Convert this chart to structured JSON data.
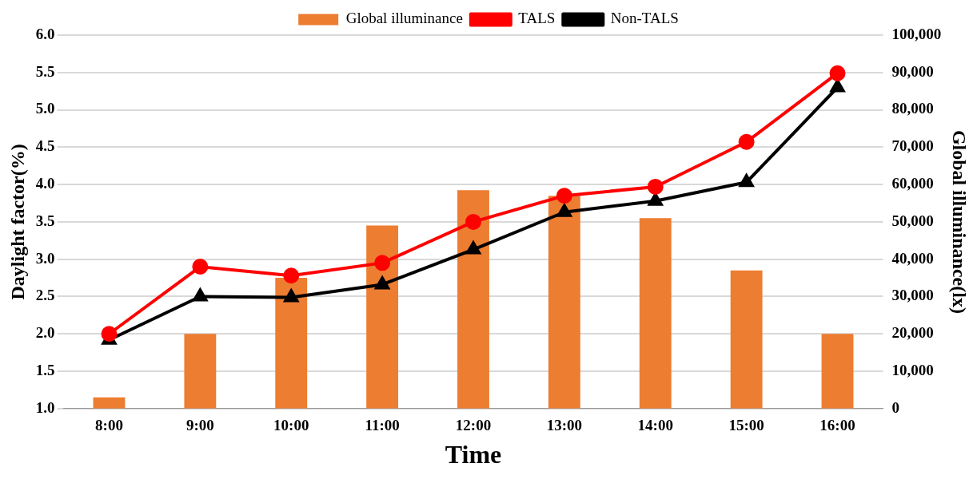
{
  "chart_data": {
    "type": "bar",
    "xlabel": "Time",
    "ylabel": "Daylight factor(%)",
    "y2label": "Global illuminance(lx)",
    "categories": [
      "8:00",
      "9:00",
      "10:00",
      "11:00",
      "12:00",
      "13:00",
      "14:00",
      "15:00",
      "16:00"
    ],
    "series": [
      {
        "name": "Global illuminance",
        "axis": "y2",
        "color": "#ed7d31",
        "values": [
          3000,
          20000,
          35000,
          49000,
          58500,
          57000,
          51000,
          37000,
          20000
        ]
      },
      {
        "name": "TALS",
        "type": "line",
        "color": "#ff0000",
        "marker": "circle",
        "values": [
          2.0,
          2.9,
          2.78,
          2.95,
          3.5,
          3.85,
          3.97,
          4.57,
          5.49
        ]
      },
      {
        "name": "Non-TALS",
        "type": "line",
        "color": "#000000",
        "marker": "triangle",
        "values": [
          1.92,
          2.5,
          2.49,
          2.66,
          3.13,
          3.63,
          3.78,
          4.03,
          5.3
        ]
      }
    ],
    "ylim": [
      1.0,
      6.0
    ],
    "yticks": [
      {
        "value": 1,
        "label": "1.0"
      },
      1.5,
      {
        "value": 2,
        "label": "2.0"
      },
      2.5,
      {
        "value": 3,
        "label": "3.0"
      },
      3.5,
      {
        "value": 4,
        "label": "4.0"
      },
      4.5,
      {
        "value": 5,
        "label": "5.0"
      },
      5.5,
      {
        "value": 6,
        "label": "6.0"
      }
    ],
    "y2lim": [
      0,
      100000
    ],
    "y2ticks": [
      {
        "value": 0,
        "label": "0"
      },
      {
        "value": 10000,
        "label": "10,000"
      },
      {
        "value": 20000,
        "label": "20,000"
      },
      {
        "value": 30000,
        "label": "30,000"
      },
      {
        "value": 40000,
        "label": "40,000"
      },
      {
        "value": 50000,
        "label": "50,000"
      },
      {
        "value": 60000,
        "label": "60,000"
      },
      {
        "value": 70000,
        "label": "70,000"
      },
      {
        "value": 80000,
        "label": "80,000"
      },
      {
        "value": 90000,
        "label": "90,000"
      },
      {
        "value": 100000,
        "label": "100,000"
      }
    ],
    "grid": "y",
    "legend": "top"
  }
}
